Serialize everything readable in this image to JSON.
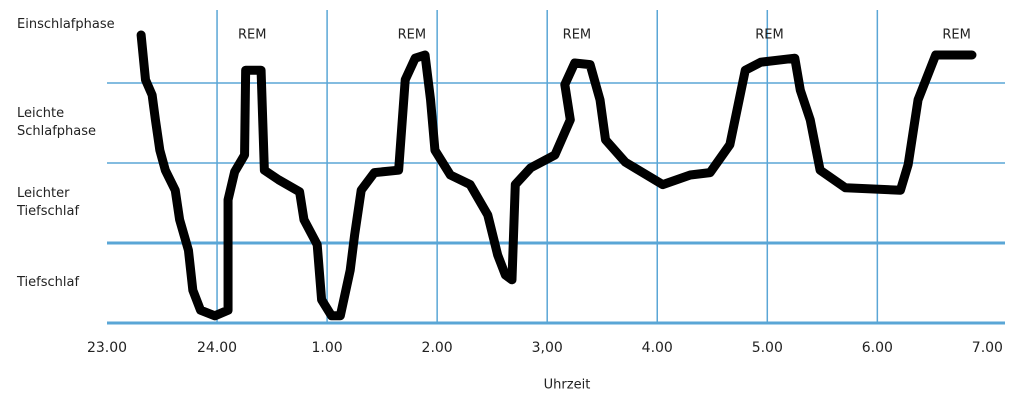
{
  "chart_data": {
    "type": "line",
    "x_label": "Uhrzeit",
    "xlim": [
      23,
      31.16
    ],
    "ylim": [
      0,
      4
    ],
    "xticks": [
      {
        "value": 23,
        "label": "23.00"
      },
      {
        "value": 24,
        "label": "24.00"
      },
      {
        "value": 25,
        "label": "1.00"
      },
      {
        "value": 26,
        "label": "2.00"
      },
      {
        "value": 27,
        "label": "3,00"
      },
      {
        "value": 28,
        "label": "4.00"
      },
      {
        "value": 29,
        "label": "5.00"
      },
      {
        "value": 30,
        "label": "6.00"
      },
      {
        "value": 31,
        "label": "7.00"
      }
    ],
    "xgrid": [
      24,
      25,
      26,
      27,
      28,
      29,
      30
    ],
    "yticks": [
      {
        "value": 3.5,
        "label": "Einschlafphase"
      },
      {
        "value": 2.5,
        "label": "Leichte Schlafphase"
      },
      {
        "value": 1.5,
        "label": "Leichter Tiefschlaf"
      },
      {
        "value": 0.5,
        "label": "Tiefschlaf"
      }
    ],
    "ygrid": [
      0,
      1,
      2,
      3
    ],
    "grid_color": "#5aa6d6",
    "annotations": [
      {
        "text": "REM",
        "x": 24.32
      },
      {
        "text": "REM",
        "x": 25.77
      },
      {
        "text": "REM",
        "x": 27.27
      },
      {
        "text": "REM",
        "x": 29.02
      },
      {
        "text": "REM",
        "x": 30.72
      }
    ],
    "series": [
      {
        "color": "#000000",
        "x": [
          23.31,
          23.35,
          23.41,
          23.44,
          23.48,
          23.53,
          23.62,
          23.66,
          23.74,
          23.78,
          23.85,
          23.98,
          24.1,
          24.1,
          24.16,
          24.25,
          24.26,
          24.4,
          24.43,
          24.56,
          24.75,
          24.79,
          24.91,
          24.95,
          25.04,
          25.12,
          25.21,
          25.25,
          25.31,
          25.43,
          25.65,
          25.71,
          25.8,
          25.89,
          25.94,
          25.98,
          26.12,
          26.3,
          26.46,
          26.55,
          26.62,
          26.68,
          26.71,
          26.85,
          27.07,
          27.21,
          27.16,
          27.25,
          27.39,
          27.48,
          27.53,
          27.71,
          28.05,
          28.3,
          28.48,
          28.66,
          28.8,
          28.94,
          29.25,
          29.3,
          29.39,
          29.48,
          29.71,
          30.21,
          30.28,
          30.37,
          30.53,
          30.86
        ],
        "values": [
          3.6,
          3.04,
          2.85,
          2.54,
          2.16,
          1.91,
          1.66,
          1.29,
          0.91,
          0.41,
          0.16,
          0.09,
          0.16,
          1.54,
          1.89,
          2.1,
          3.16,
          3.16,
          1.91,
          1.79,
          1.64,
          1.29,
          0.98,
          0.29,
          0.09,
          0.09,
          0.66,
          1.1,
          1.66,
          1.88,
          1.91,
          3.04,
          3.31,
          3.35,
          2.79,
          2.16,
          1.85,
          1.73,
          1.35,
          0.85,
          0.6,
          0.54,
          1.73,
          1.94,
          2.1,
          2.54,
          2.98,
          3.25,
          3.23,
          2.79,
          2.29,
          2.01,
          1.73,
          1.85,
          1.88,
          2.23,
          3.16,
          3.26,
          3.31,
          2.91,
          2.54,
          1.91,
          1.69,
          1.66,
          1.98,
          2.79,
          3.35,
          3.35
        ]
      }
    ]
  }
}
